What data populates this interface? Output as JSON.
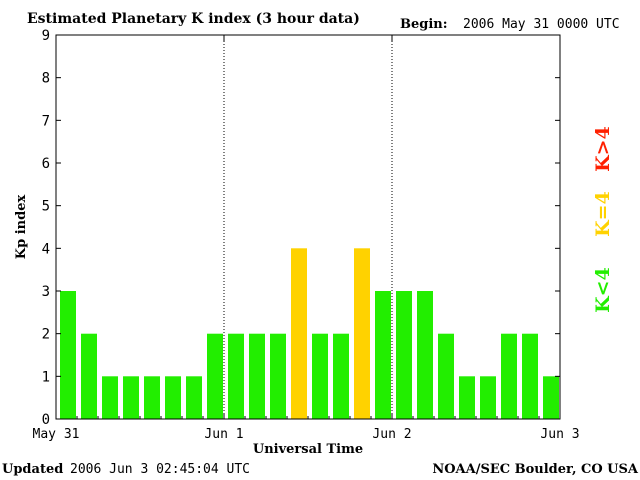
{
  "header": {
    "title": "Estimated Planetary K index (3 hour data)",
    "begin_label": "Begin:",
    "begin_value": "2006 May 31 0000 UTC"
  },
  "footer": {
    "updated_label": "Updated",
    "updated_value": "2006 Jun  3 02:45:04 UTC",
    "source": "NOAA/SEC Boulder, CO USA"
  },
  "legend": {
    "high": {
      "label": "K>4",
      "color": "#ff2000"
    },
    "equal": {
      "label": "K=4",
      "color": "#ffd200"
    },
    "low": {
      "label": "K<4",
      "color": "#22ee00"
    }
  },
  "chart_data": {
    "type": "bar",
    "title": "Estimated Planetary K index (3 hour data)",
    "xlabel": "Universal Time",
    "ylabel": "Kp index",
    "ylim": [
      0,
      9
    ],
    "yticks": [
      0,
      1,
      2,
      3,
      4,
      5,
      6,
      7,
      8,
      9
    ],
    "xtick_labels": [
      "May 31",
      "Jun 1",
      "Jun 2",
      "Jun 3"
    ],
    "day_separators": true,
    "values": [
      3,
      2,
      1,
      1,
      1,
      1,
      1,
      2,
      2,
      2,
      2,
      4,
      2,
      2,
      4,
      3,
      3,
      3,
      2,
      1,
      1,
      2,
      2,
      1
    ],
    "colors": {
      "below_4": "#22ee00",
      "equal_4": "#ffd200",
      "above_4": "#ff2000"
    }
  }
}
